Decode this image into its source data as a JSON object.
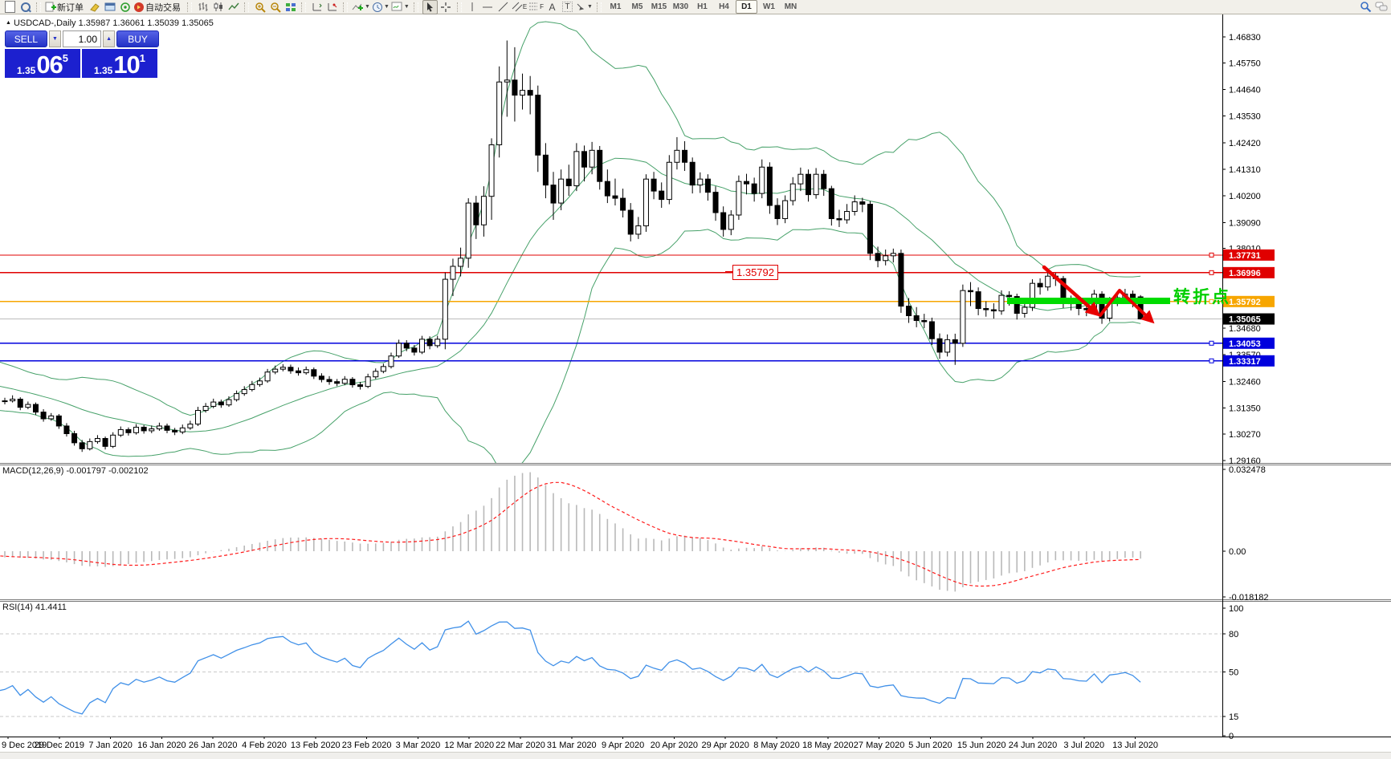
{
  "toolbar": {
    "new_order": "新订单",
    "autotrading": "自动交易",
    "text_tool": "A",
    "label_tool": "T",
    "channel_letter": "E",
    "fibo_letter": "F",
    "timeframes": [
      "M1",
      "M5",
      "M15",
      "M30",
      "H1",
      "H4",
      "D1",
      "W1",
      "MN"
    ],
    "active_timeframe": "D1"
  },
  "quote": {
    "title": "USDCAD-,Daily  1.35987 1.36061 1.35039 1.35065"
  },
  "trade_panel": {
    "sell_label": "SELL",
    "buy_label": "BUY",
    "volume": "1.00",
    "sell_price": {
      "small": "1.35",
      "big": "06",
      "sup": "5"
    },
    "buy_price": {
      "small": "1.35",
      "big": "10",
      "sup": "1"
    }
  },
  "annotations": {
    "turning_point": "转折点",
    "price_callout": "1.35792"
  },
  "indicators": {
    "macd_label": "MACD(12,26,9) -0.001797 -0.002102",
    "rsi_label": "RSI(14) 41.4411",
    "macd_axis": [
      "0.032478",
      "0.00",
      "-0.018182"
    ],
    "rsi_axis": [
      "100",
      "80",
      "50",
      "15",
      "0"
    ],
    "rsi_levels": [
      80,
      50,
      15
    ]
  },
  "chart_data": {
    "type": "candlestick",
    "symbol": "USDCAD",
    "timeframe": "Daily",
    "settings": {
      "bollinger": [
        20,
        2
      ],
      "macd": [
        12,
        26,
        9
      ],
      "rsi": 14
    },
    "visible_start": 26,
    "price_ticks": [
      "1.46830",
      "1.45750",
      "1.44640",
      "1.43530",
      "1.42420",
      "1.41310",
      "1.40200",
      "1.39090",
      "1.38010",
      "1.36900",
      "1.35790",
      "1.34680",
      "1.33570",
      "1.32460",
      "1.31350",
      "1.30270",
      "1.29160"
    ],
    "levels": [
      {
        "label": "1.37731",
        "value": 1.37731,
        "line": "#e00000",
        "tag": "#e00000"
      },
      {
        "label": "1.36996",
        "value": 1.36996,
        "line": "#e00000",
        "tag": "#e00000"
      },
      {
        "label": "1.35792",
        "value": 1.35792,
        "line": "#f7a600",
        "tag": "#f7a600"
      },
      {
        "label": "1.35065",
        "value": 1.35065,
        "line": "#bcbcbc",
        "tag": "#000000",
        "current": true
      },
      {
        "label": "1.34053",
        "value": 1.34053,
        "line": "#0000dd",
        "tag": "#0000dd"
      },
      {
        "label": "1.33317",
        "value": 1.33317,
        "line": "#0000dd",
        "tag": "#0000dd"
      }
    ],
    "date_labels": [
      "9 Dec 2019",
      "29 Dec 2019",
      "7 Jan 2020",
      "16 Jan 2020",
      "26 Jan 2020",
      "4 Feb 2020",
      "13 Feb 2020",
      "23 Feb 2020",
      "3 Mar 2020",
      "12 Mar 2020",
      "22 Mar 2020",
      "31 Mar 2020",
      "9 Apr 2020",
      "20 Apr 2020",
      "29 Apr 2020",
      "8 May 2020",
      "18 May 2020",
      "27 May 2020",
      "5 Jun 2020",
      "15 Jun 2020",
      "24 Jun 2020",
      "3 Jul 2020",
      "13 Jul 2020"
    ],
    "candles": [
      [
        1.3228,
        1.3252,
        1.322,
        1.324
      ],
      [
        1.324,
        1.3262,
        1.3232,
        1.3252
      ],
      [
        1.3252,
        1.3275,
        1.3245,
        1.3262
      ],
      [
        1.3262,
        1.3288,
        1.3255,
        1.3275
      ],
      [
        1.3275,
        1.3298,
        1.3268,
        1.3285
      ],
      [
        1.3285,
        1.331,
        1.3278,
        1.3298
      ],
      [
        1.3298,
        1.332,
        1.329,
        1.3308
      ],
      [
        1.3308,
        1.3318,
        1.3285,
        1.3295
      ],
      [
        1.3295,
        1.3315,
        1.3286,
        1.3302
      ],
      [
        1.3302,
        1.3312,
        1.328,
        1.329
      ],
      [
        1.329,
        1.33,
        1.3268,
        1.3278
      ],
      [
        1.3278,
        1.329,
        1.3258,
        1.3268
      ],
      [
        1.3268,
        1.3284,
        1.326,
        1.3272
      ],
      [
        1.3272,
        1.328,
        1.3248,
        1.3258
      ],
      [
        1.3258,
        1.327,
        1.3236,
        1.3246
      ],
      [
        1.3246,
        1.3256,
        1.3222,
        1.3232
      ],
      [
        1.3232,
        1.3242,
        1.3206,
        1.3216
      ],
      [
        1.3216,
        1.3228,
        1.3192,
        1.3202
      ],
      [
        1.3202,
        1.3212,
        1.3176,
        1.3186
      ],
      [
        1.3186,
        1.3198,
        1.3162,
        1.3172
      ],
      [
        1.3172,
        1.3182,
        1.315,
        1.316
      ],
      [
        1.316,
        1.3184,
        1.3152,
        1.3174
      ],
      [
        1.3174,
        1.32,
        1.3166,
        1.319
      ],
      [
        1.319,
        1.3198,
        1.3172,
        1.3182
      ],
      [
        1.3182,
        1.3192,
        1.316,
        1.317
      ],
      [
        1.317,
        1.318,
        1.3152,
        1.3162
      ],
      [
        1.3162,
        1.3178,
        1.315,
        1.3165
      ],
      [
        1.3165,
        1.3188,
        1.3158,
        1.3172
      ],
      [
        1.3172,
        1.318,
        1.3126,
        1.3138
      ],
      [
        1.3138,
        1.3162,
        1.313,
        1.315
      ],
      [
        1.315,
        1.3158,
        1.3106,
        1.3118
      ],
      [
        1.3118,
        1.313,
        1.3078,
        1.309
      ],
      [
        1.309,
        1.3114,
        1.3082,
        1.3102
      ],
      [
        1.3102,
        1.311,
        1.3048,
        1.306
      ],
      [
        1.306,
        1.3072,
        1.3016,
        1.3028
      ],
      [
        1.3028,
        1.304,
        1.2978,
        1.299
      ],
      [
        1.299,
        1.3002,
        1.2952,
        1.2965
      ],
      [
        1.2965,
        1.3008,
        1.2958,
        1.2995
      ],
      [
        1.2995,
        1.3022,
        1.2986,
        1.3008
      ],
      [
        1.3008,
        1.3016,
        1.2962,
        1.2975
      ],
      [
        1.2975,
        1.3034,
        1.2968,
        1.3022
      ],
      [
        1.3022,
        1.3058,
        1.3014,
        1.3045
      ],
      [
        1.3045,
        1.3054,
        1.302,
        1.3032
      ],
      [
        1.3032,
        1.3068,
        1.3024,
        1.3055
      ],
      [
        1.3055,
        1.3064,
        1.3028,
        1.304
      ],
      [
        1.304,
        1.3062,
        1.303,
        1.3048
      ],
      [
        1.3048,
        1.3074,
        1.304,
        1.306
      ],
      [
        1.306,
        1.307,
        1.303,
        1.3042
      ],
      [
        1.3042,
        1.3052,
        1.3022,
        1.3035
      ],
      [
        1.3035,
        1.3066,
        1.3026,
        1.3052
      ],
      [
        1.3052,
        1.3082,
        1.3044,
        1.3068
      ],
      [
        1.3068,
        1.314,
        1.306,
        1.3125
      ],
      [
        1.3125,
        1.3156,
        1.3116,
        1.3142
      ],
      [
        1.3142,
        1.3174,
        1.3134,
        1.316
      ],
      [
        1.316,
        1.317,
        1.3136,
        1.3148
      ],
      [
        1.3148,
        1.3184,
        1.314,
        1.317
      ],
      [
        1.317,
        1.3208,
        1.3162,
        1.3195
      ],
      [
        1.3195,
        1.3226,
        1.3186,
        1.3212
      ],
      [
        1.3212,
        1.3248,
        1.3204,
        1.3233
      ],
      [
        1.3233,
        1.3262,
        1.3224,
        1.3248
      ],
      [
        1.3248,
        1.3298,
        1.324,
        1.3285
      ],
      [
        1.3285,
        1.3312,
        1.3276,
        1.3297
      ],
      [
        1.3297,
        1.3318,
        1.3288,
        1.3305
      ],
      [
        1.3305,
        1.3316,
        1.3278,
        1.329
      ],
      [
        1.329,
        1.3304,
        1.327,
        1.3282
      ],
      [
        1.3282,
        1.3308,
        1.3274,
        1.3295
      ],
      [
        1.3295,
        1.3304,
        1.3256,
        1.3268
      ],
      [
        1.3268,
        1.328,
        1.3242,
        1.3254
      ],
      [
        1.3254,
        1.3268,
        1.3232,
        1.3245
      ],
      [
        1.3245,
        1.3256,
        1.3226,
        1.3238
      ],
      [
        1.3238,
        1.3268,
        1.323,
        1.3255
      ],
      [
        1.3255,
        1.3264,
        1.322,
        1.3232
      ],
      [
        1.3232,
        1.3244,
        1.3212,
        1.3225
      ],
      [
        1.3225,
        1.3278,
        1.3218,
        1.3265
      ],
      [
        1.3265,
        1.33,
        1.3256,
        1.3288
      ],
      [
        1.3288,
        1.332,
        1.328,
        1.3308
      ],
      [
        1.3308,
        1.3366,
        1.33,
        1.3352
      ],
      [
        1.3352,
        1.342,
        1.3344,
        1.3405
      ],
      [
        1.3405,
        1.3418,
        1.3372,
        1.3385
      ],
      [
        1.3385,
        1.3398,
        1.3354,
        1.3368
      ],
      [
        1.3368,
        1.3436,
        1.336,
        1.3422
      ],
      [
        1.3422,
        1.3434,
        1.338,
        1.3395
      ],
      [
        1.3395,
        1.3436,
        1.3386,
        1.3422
      ],
      [
        1.3422,
        1.37,
        1.338,
        1.3672
      ],
      [
        1.3672,
        1.3758,
        1.3602,
        1.3726
      ],
      [
        1.3726,
        1.3804,
        1.3684,
        1.376
      ],
      [
        1.376,
        1.401,
        1.372,
        1.399
      ],
      [
        1.399,
        1.402,
        1.384,
        1.3899
      ],
      [
        1.3899,
        1.406,
        1.385,
        1.4018
      ],
      [
        1.4018,
        1.426,
        1.392,
        1.4233
      ],
      [
        1.4233,
        1.456,
        1.418,
        1.4495
      ],
      [
        1.4495,
        1.4668,
        1.435,
        1.4503
      ],
      [
        1.4503,
        1.464,
        1.433,
        1.444
      ],
      [
        1.444,
        1.453,
        1.438,
        1.446
      ],
      [
        1.446,
        1.452,
        1.436,
        1.444
      ],
      [
        1.444,
        1.448,
        1.412,
        1.419
      ],
      [
        1.419,
        1.424,
        1.401,
        1.4065
      ],
      [
        1.4065,
        1.412,
        1.392,
        1.399
      ],
      [
        1.399,
        1.413,
        1.396,
        1.409
      ],
      [
        1.409,
        1.415,
        1.402,
        1.4062
      ],
      [
        1.4062,
        1.424,
        1.404,
        1.4205
      ],
      [
        1.4205,
        1.423,
        1.408,
        1.414
      ],
      [
        1.414,
        1.4245,
        1.411,
        1.421
      ],
      [
        1.421,
        1.4228,
        1.4046,
        1.408
      ],
      [
        1.408,
        1.413,
        1.399,
        1.402
      ],
      [
        1.402,
        1.4092,
        1.398,
        1.401
      ],
      [
        1.401,
        1.405,
        1.393,
        1.396
      ],
      [
        1.396,
        1.399,
        1.383,
        1.386
      ],
      [
        1.386,
        1.3932,
        1.384,
        1.3895
      ],
      [
        1.3895,
        1.411,
        1.387,
        1.409
      ],
      [
        1.409,
        1.412,
        1.4006,
        1.404
      ],
      [
        1.404,
        1.4076,
        1.397,
        1.4005
      ],
      [
        1.4005,
        1.419,
        1.3985,
        1.416
      ],
      [
        1.416,
        1.4265,
        1.413,
        1.421
      ],
      [
        1.421,
        1.4248,
        1.4124,
        1.416
      ],
      [
        1.416,
        1.418,
        1.403,
        1.4065
      ],
      [
        1.4065,
        1.4118,
        1.4032,
        1.409
      ],
      [
        1.409,
        1.411,
        1.4,
        1.4035
      ],
      [
        1.4035,
        1.406,
        1.3916,
        1.395
      ],
      [
        1.395,
        1.3976,
        1.385,
        1.388
      ],
      [
        1.388,
        1.396,
        1.3856,
        1.394
      ],
      [
        1.394,
        1.4105,
        1.392,
        1.408
      ],
      [
        1.408,
        1.4112,
        1.4026,
        1.407
      ],
      [
        1.407,
        1.4096,
        1.3996,
        1.403
      ],
      [
        1.403,
        1.4172,
        1.401,
        1.414
      ],
      [
        1.414,
        1.416,
        1.3945,
        1.398
      ],
      [
        1.398,
        1.401,
        1.3898,
        1.3925
      ],
      [
        1.3925,
        1.4022,
        1.3906,
        1.4
      ],
      [
        1.4,
        1.4098,
        1.398,
        1.407
      ],
      [
        1.407,
        1.4138,
        1.404,
        1.411
      ],
      [
        1.411,
        1.413,
        1.3996,
        1.4025
      ],
      [
        1.4025,
        1.4136,
        1.4008,
        1.411
      ],
      [
        1.411,
        1.4128,
        1.402,
        1.405
      ],
      [
        1.405,
        1.4062,
        1.3896,
        1.3925
      ],
      [
        1.3925,
        1.3962,
        1.389,
        1.392
      ],
      [
        1.392,
        1.3986,
        1.3904,
        1.3955
      ],
      [
        1.3955,
        1.4022,
        1.3938,
        1.3995
      ],
      [
        1.3995,
        1.4012,
        1.3952,
        1.3985
      ],
      [
        1.3985,
        1.3998,
        1.3752,
        1.378
      ],
      [
        1.378,
        1.3808,
        1.3722,
        1.375
      ],
      [
        1.375,
        1.3796,
        1.373,
        1.377
      ],
      [
        1.377,
        1.38,
        1.3742,
        1.378
      ],
      [
        1.378,
        1.3796,
        1.3532,
        1.356
      ],
      [
        1.356,
        1.3594,
        1.349,
        1.352
      ],
      [
        1.352,
        1.3556,
        1.3472,
        1.35
      ],
      [
        1.35,
        1.3528,
        1.3468,
        1.3495
      ],
      [
        1.3495,
        1.3512,
        1.3398,
        1.3424
      ],
      [
        1.3424,
        1.3446,
        1.334,
        1.3368
      ],
      [
        1.3368,
        1.3442,
        1.335,
        1.342
      ],
      [
        1.342,
        1.3445,
        1.3315,
        1.3405
      ],
      [
        1.3405,
        1.365,
        1.339,
        1.3625
      ],
      [
        1.3625,
        1.366,
        1.356,
        1.362
      ],
      [
        1.362,
        1.3638,
        1.3522,
        1.355
      ],
      [
        1.355,
        1.358,
        1.3516,
        1.3545
      ],
      [
        1.3545,
        1.3572,
        1.3508,
        1.354
      ],
      [
        1.354,
        1.3626,
        1.3524,
        1.3605
      ],
      [
        1.3605,
        1.3622,
        1.3562,
        1.36
      ],
      [
        1.36,
        1.3612,
        1.3504,
        1.353
      ],
      [
        1.353,
        1.3578,
        1.3512,
        1.3555
      ],
      [
        1.3555,
        1.3672,
        1.354,
        1.3655
      ],
      [
        1.3655,
        1.3676,
        1.3608,
        1.364
      ],
      [
        1.364,
        1.3702,
        1.3624,
        1.3685
      ],
      [
        1.3685,
        1.3698,
        1.3644,
        1.3675
      ],
      [
        1.3675,
        1.3686,
        1.3552,
        1.3576
      ],
      [
        1.3576,
        1.3604,
        1.3542,
        1.357
      ],
      [
        1.357,
        1.3588,
        1.3522,
        1.355
      ],
      [
        1.355,
        1.3576,
        1.3518,
        1.3545
      ],
      [
        1.3545,
        1.3628,
        1.353,
        1.361
      ],
      [
        1.361,
        1.3622,
        1.3486,
        1.351
      ],
      [
        1.351,
        1.3598,
        1.3496,
        1.3585
      ],
      [
        1.3585,
        1.3618,
        1.356,
        1.3595
      ],
      [
        1.3595,
        1.3632,
        1.3572,
        1.361
      ],
      [
        1.361,
        1.3625,
        1.3555,
        1.358
      ],
      [
        1.35987,
        1.36061,
        1.35039,
        1.35065
      ]
    ]
  }
}
